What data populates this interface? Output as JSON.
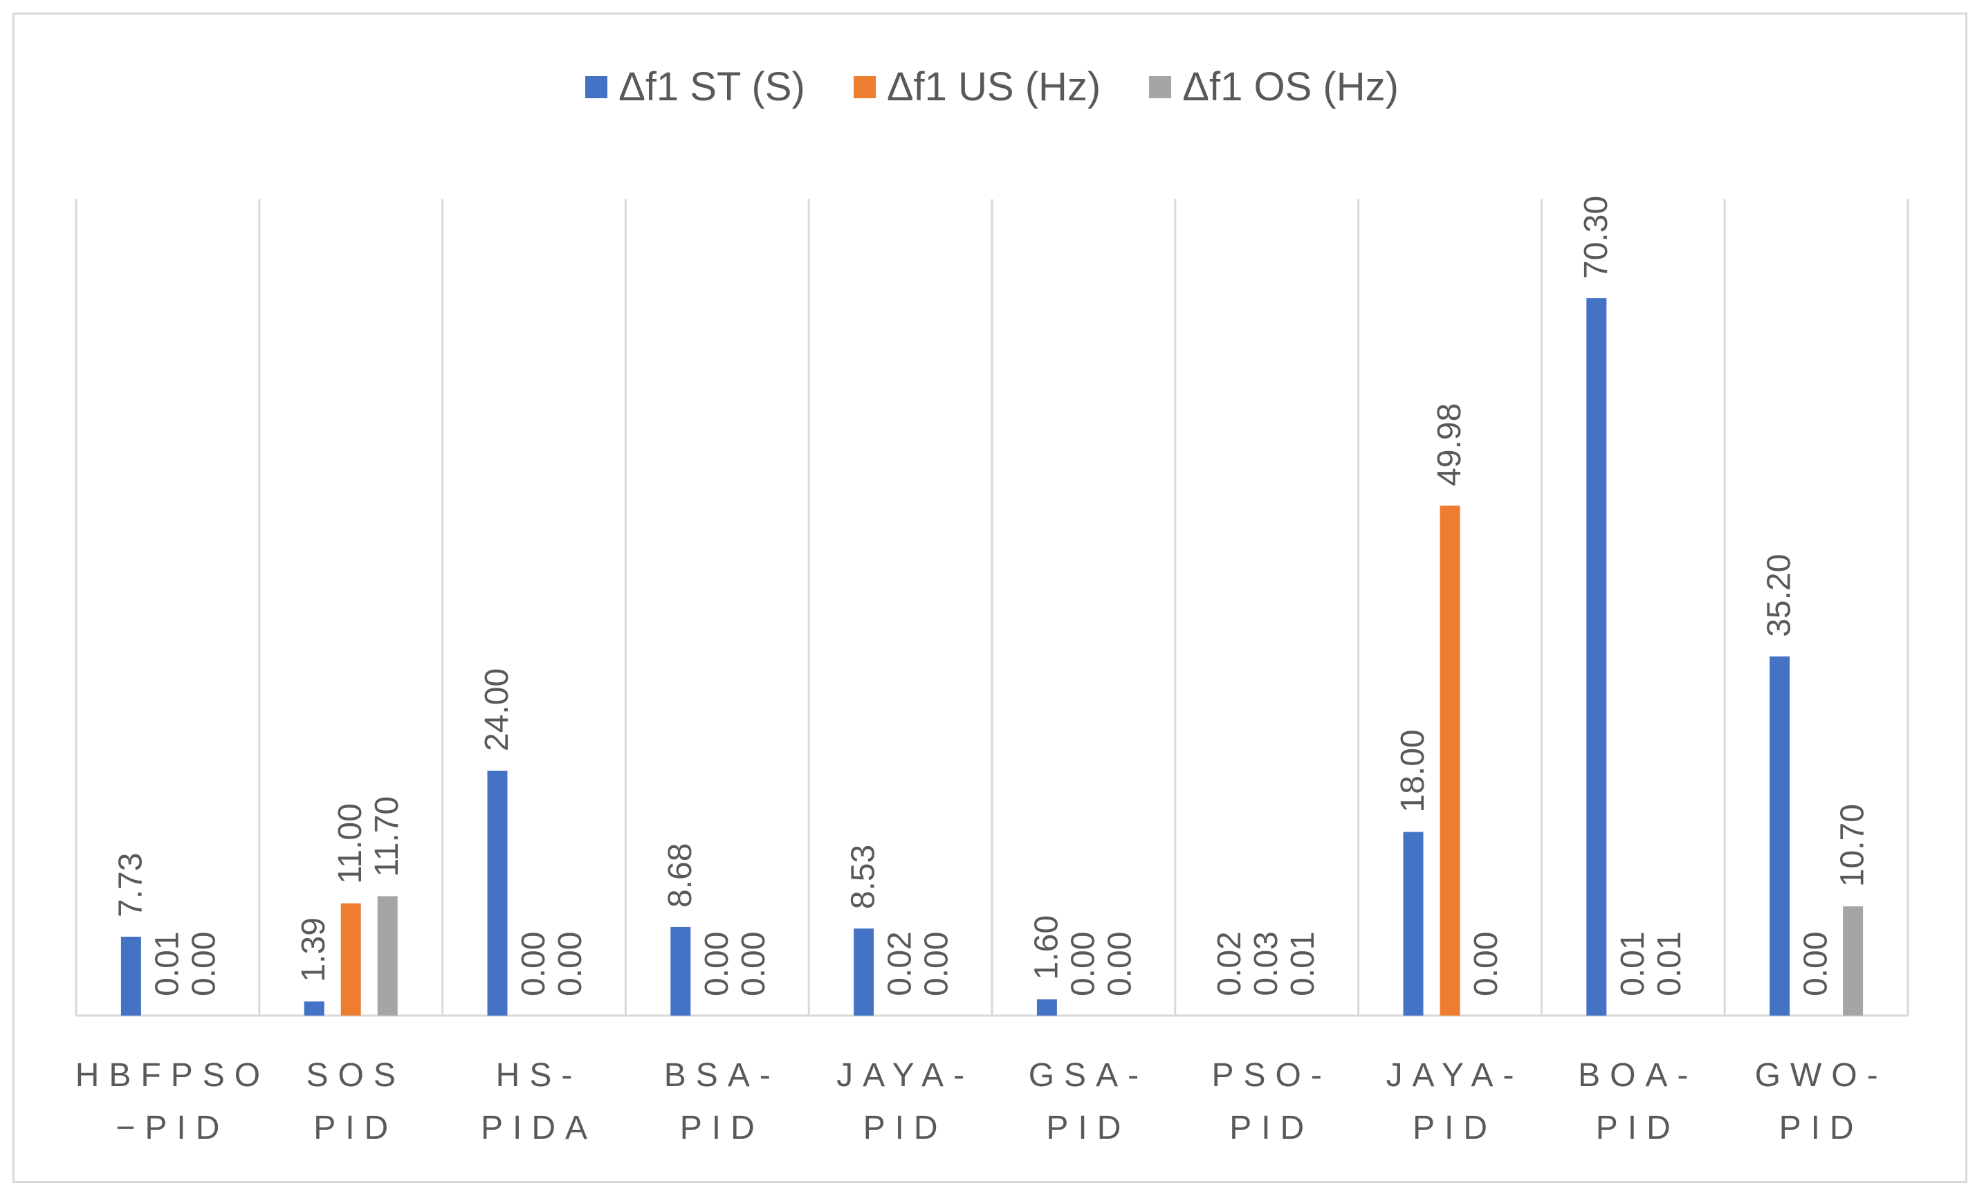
{
  "chart_data": {
    "type": "bar",
    "title": "",
    "xlabel": "",
    "ylabel": "",
    "ylim": [
      0,
      80
    ],
    "grid": "vertical",
    "legend_position": "top-center",
    "categories": [
      [
        "HBFPSO",
        "−PID"
      ],
      [
        "SOS",
        "PID"
      ],
      [
        "HS-",
        "PIDA"
      ],
      [
        "BSA-",
        "PID"
      ],
      [
        "JAYA-",
        "PID"
      ],
      [
        "GSA-",
        "PID"
      ],
      [
        "PSO-",
        "PID"
      ],
      [
        "JAYA-",
        "PID"
      ],
      [
        "BOA-",
        "PID"
      ],
      [
        "GWO-",
        "PID"
      ]
    ],
    "series": [
      {
        "name": "Δf1 ST (S)",
        "color": "#4472c4",
        "values": [
          7.73,
          1.39,
          24.0,
          8.68,
          8.53,
          1.6,
          0.02,
          18.0,
          70.3,
          35.2
        ],
        "labels": [
          "7.73",
          "1.39",
          "24.00",
          "8.68",
          "8.53",
          "1.60",
          "0.02",
          "18.00",
          "70.30",
          "35.20"
        ]
      },
      {
        "name": "Δf1 US (Hz)",
        "color": "#ed7d31",
        "values": [
          0.01,
          11.0,
          0.0,
          0.0,
          0.02,
          0.0,
          0.03,
          49.98,
          0.01,
          0.0
        ],
        "labels": [
          "0.01",
          "11.00",
          "0.00",
          "0.00",
          "0.02",
          "0.00",
          "0.03",
          "49.98",
          "0.01",
          "0.00"
        ]
      },
      {
        "name": "Δf1 OS (Hz)",
        "color": "#a5a5a5",
        "values": [
          0.0,
          11.7,
          0.0,
          0.0,
          0.0,
          0.0,
          0.01,
          0.0,
          0.01,
          10.7
        ],
        "labels": [
          "0.00",
          "11.70",
          "0.00",
          "0.00",
          "0.00",
          "0.00",
          "0.01",
          "0.00",
          "0.01",
          "10.70"
        ]
      }
    ]
  }
}
